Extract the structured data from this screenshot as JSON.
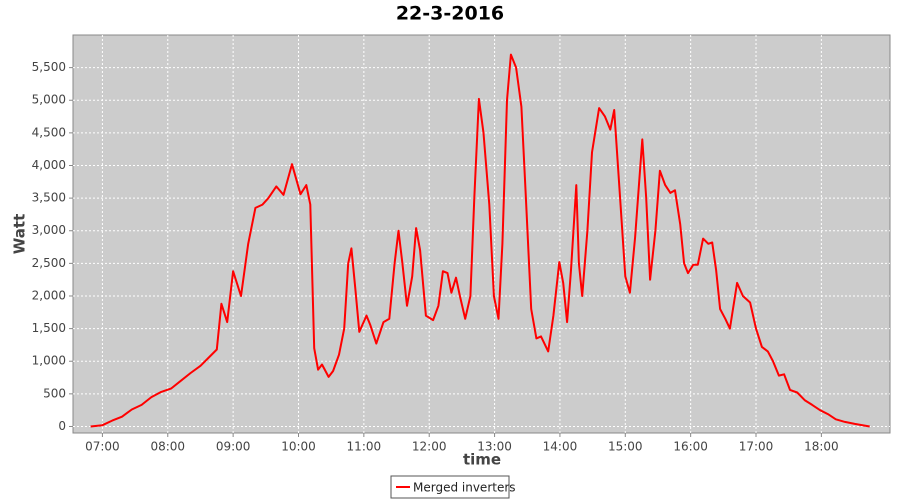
{
  "chart_data": {
    "type": "line",
    "title": "22-3-2016",
    "x_label": "time",
    "y_label": "Watt",
    "grid": true,
    "legend": "bottom",
    "xlim": [
      6.55,
      19.05
    ],
    "xticks": [
      {
        "value": 7,
        "label": "07:00"
      },
      {
        "value": 8,
        "label": "08:00"
      },
      {
        "value": 9,
        "label": "09:00"
      },
      {
        "value": 10,
        "label": "10:00"
      },
      {
        "value": 11,
        "label": "11:00"
      },
      {
        "value": 12,
        "label": "12:00"
      },
      {
        "value": 13,
        "label": "13:00"
      },
      {
        "value": 14,
        "label": "14:00"
      },
      {
        "value": 15,
        "label": "15:00"
      },
      {
        "value": 16,
        "label": "16:00"
      },
      {
        "value": 17,
        "label": "17:00"
      },
      {
        "value": 18,
        "label": "18:00"
      }
    ],
    "ylim": [
      -100,
      6000
    ],
    "yticks": [
      0,
      500,
      {
        "value": 1000,
        "label": "1,000"
      },
      {
        "value": 1500,
        "label": "1,500"
      },
      {
        "value": 2000,
        "label": "2,000"
      },
      {
        "value": 2500,
        "label": "2,500"
      },
      {
        "value": 3000,
        "label": "3,000"
      },
      {
        "value": 3500,
        "label": "3,500"
      },
      {
        "value": 4000,
        "label": "4,000"
      },
      {
        "value": 4500,
        "label": "4,500"
      },
      {
        "value": 5000,
        "label": "5,000"
      },
      {
        "value": 5500,
        "label": "5,500"
      }
    ],
    "x": [
      6.82,
      7.0,
      7.15,
      7.3,
      7.45,
      7.6,
      7.75,
      7.9,
      8.05,
      8.2,
      8.35,
      8.5,
      8.65,
      8.75,
      8.82,
      8.91,
      9.0,
      9.12,
      9.23,
      9.34,
      9.45,
      9.54,
      9.66,
      9.77,
      9.9,
      10.03,
      10.12,
      10.18,
      10.24,
      10.3,
      10.36,
      10.46,
      10.53,
      10.62,
      10.7,
      10.76,
      10.81,
      10.87,
      10.93,
      11.04,
      11.1,
      11.19,
      11.3,
      11.39,
      11.47,
      11.53,
      11.59,
      11.66,
      11.74,
      11.8,
      11.86,
      11.95,
      12.06,
      12.14,
      12.21,
      12.28,
      12.34,
      12.41,
      12.47,
      12.55,
      12.63,
      12.69,
      12.76,
      12.83,
      12.92,
      12.99,
      13.06,
      13.12,
      13.19,
      13.25,
      13.33,
      13.41,
      13.48,
      13.56,
      13.64,
      13.71,
      13.82,
      13.9,
      13.99,
      14.05,
      14.11,
      14.17,
      14.25,
      14.29,
      14.34,
      14.42,
      14.49,
      14.6,
      14.69,
      14.77,
      14.83,
      14.92,
      15.0,
      15.07,
      15.15,
      15.26,
      15.32,
      15.38,
      15.46,
      15.53,
      15.61,
      15.69,
      15.76,
      15.84,
      15.9,
      15.96,
      16.04,
      16.11,
      16.19,
      16.27,
      16.33,
      16.39,
      16.45,
      16.53,
      16.6,
      16.71,
      16.8,
      16.91,
      17.0,
      17.09,
      17.18,
      17.26,
      17.35,
      17.43,
      17.52,
      17.63,
      17.75,
      17.86,
      17.98,
      18.1,
      18.22,
      18.36,
      18.51,
      18.74
    ],
    "series": [
      {
        "name": "Merged inverters",
        "color": "#ff0000",
        "values": [
          0,
          20,
          90,
          150,
          260,
          330,
          450,
          530,
          580,
          700,
          820,
          930,
          1080,
          1180,
          1880,
          1600,
          2380,
          2000,
          2800,
          3350,
          3400,
          3500,
          3680,
          3550,
          4020,
          3560,
          3700,
          3400,
          1200,
          870,
          950,
          760,
          850,
          1100,
          1500,
          2500,
          2730,
          2100,
          1450,
          1700,
          1550,
          1270,
          1600,
          1650,
          2500,
          3000,
          2500,
          1850,
          2300,
          3040,
          2700,
          1700,
          1630,
          1850,
          2380,
          2350,
          2050,
          2280,
          2000,
          1650,
          2000,
          3500,
          5020,
          4500,
          3400,
          2000,
          1650,
          2800,
          5000,
          5700,
          5500,
          4900,
          3500,
          1800,
          1350,
          1380,
          1150,
          1700,
          2520,
          2200,
          1600,
          2400,
          3700,
          2500,
          2000,
          3000,
          4200,
          4880,
          4750,
          4550,
          4850,
          3500,
          2300,
          2050,
          2900,
          4400,
          3500,
          2250,
          3000,
          3920,
          3700,
          3580,
          3620,
          3100,
          2500,
          2350,
          2480,
          2480,
          2880,
          2800,
          2820,
          2400,
          1800,
          1650,
          1500,
          2200,
          2000,
          1900,
          1500,
          1220,
          1150,
          1000,
          780,
          800,
          560,
          520,
          400,
          330,
          250,
          190,
          110,
          70,
          40,
          0
        ]
      }
    ]
  }
}
